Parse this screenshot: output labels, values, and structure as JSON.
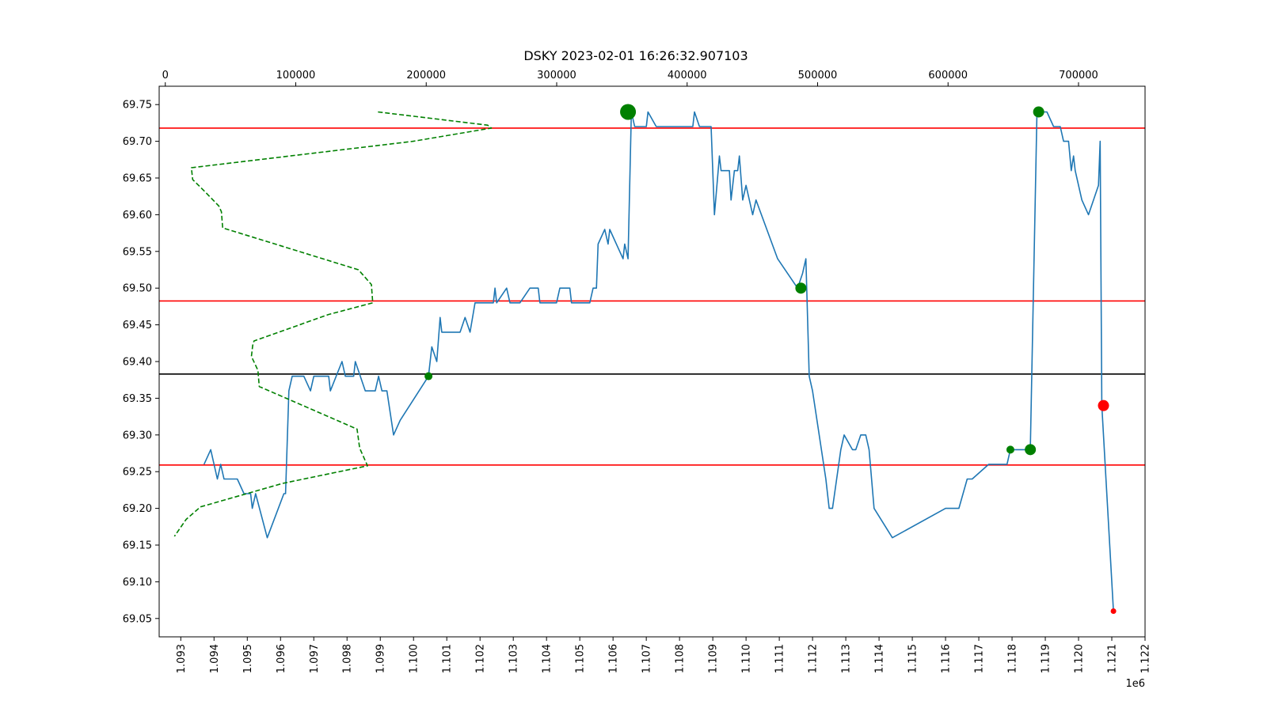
{
  "chart_data": {
    "type": "line",
    "title": "DSKY 2023-02-01 16:26:32.907103",
    "x_offset_label": "1e6",
    "x": {
      "range": [
        1092350,
        1122000
      ],
      "ticks": [
        1093000,
        1094000,
        1095000,
        1096000,
        1097000,
        1098000,
        1099000,
        1100000,
        1101000,
        1102000,
        1103000,
        1104000,
        1105000,
        1106000,
        1107000,
        1108000,
        1109000,
        1110000,
        1111000,
        1112000,
        1113000,
        1114000,
        1115000,
        1116000,
        1117000,
        1118000,
        1119000,
        1120000,
        1121000,
        1122000
      ],
      "tick_labels": [
        "1.093",
        "1.094",
        "1.095",
        "1.096",
        "1.097",
        "1.098",
        "1.099",
        "1.100",
        "1.101",
        "1.102",
        "1.103",
        "1.104",
        "1.105",
        "1.106",
        "1.107",
        "1.108",
        "1.109",
        "1.110",
        "1.111",
        "1.112",
        "1.113",
        "1.114",
        "1.115",
        "1.116",
        "1.117",
        "1.118",
        "1.119",
        "1.120",
        "1.121",
        "1.122"
      ]
    },
    "x_top": {
      "range": [
        -4700,
        751000
      ],
      "ticks": [
        0,
        100000,
        200000,
        300000,
        400000,
        500000,
        600000,
        700000
      ],
      "tick_labels": [
        "0",
        "100000",
        "200000",
        "300000",
        "400000",
        "500000",
        "600000",
        "700000"
      ]
    },
    "y": {
      "range": [
        69.025,
        69.775
      ],
      "ticks": [
        69.05,
        69.1,
        69.15,
        69.2,
        69.25,
        69.3,
        69.35,
        69.4,
        69.45,
        69.5,
        69.55,
        69.6,
        69.65,
        69.7,
        69.75
      ],
      "tick_labels": [
        "69.05",
        "69.10",
        "69.15",
        "69.20",
        "69.25",
        "69.30",
        "69.35",
        "69.40",
        "69.45",
        "69.50",
        "69.55",
        "69.60",
        "69.65",
        "69.70",
        "69.75"
      ]
    },
    "series": [
      {
        "kind": "line",
        "color": "#1f77b4",
        "points": [
          [
            1093700,
            69.26
          ],
          [
            1093900,
            69.28
          ],
          [
            1094100,
            69.24
          ],
          [
            1094200,
            69.26
          ],
          [
            1094300,
            69.24
          ],
          [
            1094700,
            69.24
          ],
          [
            1094900,
            69.22
          ],
          [
            1095100,
            69.22
          ],
          [
            1095150,
            69.2
          ],
          [
            1095250,
            69.22
          ],
          [
            1095600,
            69.16
          ],
          [
            1096100,
            69.22
          ],
          [
            1096150,
            69.22
          ],
          [
            1096250,
            69.36
          ],
          [
            1096350,
            69.38
          ],
          [
            1096700,
            69.38
          ],
          [
            1096900,
            69.36
          ],
          [
            1097000,
            69.38
          ],
          [
            1097450,
            69.38
          ],
          [
            1097500,
            69.36
          ],
          [
            1097850,
            69.4
          ],
          [
            1097950,
            69.38
          ],
          [
            1098200,
            69.38
          ],
          [
            1098250,
            69.4
          ],
          [
            1098550,
            69.36
          ],
          [
            1098850,
            69.36
          ],
          [
            1098950,
            69.38
          ],
          [
            1099050,
            69.36
          ],
          [
            1099200,
            69.36
          ],
          [
            1099400,
            69.3
          ],
          [
            1099600,
            69.32
          ],
          [
            1100450,
            69.38
          ],
          [
            1100550,
            69.42
          ],
          [
            1100700,
            69.4
          ],
          [
            1100800,
            69.46
          ],
          [
            1100850,
            69.44
          ],
          [
            1101400,
            69.44
          ],
          [
            1101550,
            69.46
          ],
          [
            1101700,
            69.44
          ],
          [
            1101850,
            69.48
          ],
          [
            1102250,
            69.48
          ],
          [
            1102400,
            69.48
          ],
          [
            1102450,
            69.5
          ],
          [
            1102500,
            69.48
          ],
          [
            1102800,
            69.5
          ],
          [
            1102900,
            69.48
          ],
          [
            1103200,
            69.48
          ],
          [
            1103500,
            69.5
          ],
          [
            1103750,
            69.5
          ],
          [
            1103800,
            69.48
          ],
          [
            1104300,
            69.48
          ],
          [
            1104400,
            69.5
          ],
          [
            1104700,
            69.5
          ],
          [
            1104750,
            69.48
          ],
          [
            1105300,
            69.48
          ],
          [
            1105400,
            69.5
          ],
          [
            1105500,
            69.5
          ],
          [
            1105550,
            69.56
          ],
          [
            1105750,
            69.58
          ],
          [
            1105850,
            69.56
          ],
          [
            1105900,
            69.58
          ],
          [
            1106200,
            69.55
          ],
          [
            1106300,
            69.54
          ],
          [
            1106350,
            69.56
          ],
          [
            1106450,
            69.54
          ],
          [
            1106550,
            69.74
          ],
          [
            1106650,
            69.72
          ],
          [
            1107000,
            69.72
          ],
          [
            1107050,
            69.74
          ],
          [
            1107300,
            69.72
          ],
          [
            1108400,
            69.72
          ],
          [
            1108450,
            69.74
          ],
          [
            1108600,
            69.72
          ],
          [
            1108950,
            69.72
          ],
          [
            1109050,
            69.6
          ],
          [
            1109200,
            69.68
          ],
          [
            1109250,
            69.66
          ],
          [
            1109500,
            69.66
          ],
          [
            1109550,
            69.62
          ],
          [
            1109650,
            69.66
          ],
          [
            1109750,
            69.66
          ],
          [
            1109800,
            69.68
          ],
          [
            1109900,
            69.62
          ],
          [
            1110000,
            69.64
          ],
          [
            1110200,
            69.6
          ],
          [
            1110300,
            69.62
          ],
          [
            1110950,
            69.54
          ],
          [
            1111550,
            69.5
          ],
          [
            1111700,
            69.52
          ],
          [
            1111800,
            69.54
          ],
          [
            1111900,
            69.38
          ],
          [
            1112000,
            69.36
          ],
          [
            1112400,
            69.24
          ],
          [
            1112500,
            69.2
          ],
          [
            1112600,
            69.2
          ],
          [
            1112850,
            69.28
          ],
          [
            1112950,
            69.3
          ],
          [
            1113200,
            69.28
          ],
          [
            1113300,
            69.28
          ],
          [
            1113450,
            69.3
          ],
          [
            1113600,
            69.3
          ],
          [
            1113700,
            69.28
          ],
          [
            1113850,
            69.2
          ],
          [
            1114400,
            69.16
          ],
          [
            1116000,
            69.2
          ],
          [
            1116400,
            69.2
          ],
          [
            1116650,
            69.24
          ],
          [
            1116800,
            69.24
          ],
          [
            1117300,
            69.26
          ],
          [
            1117850,
            69.26
          ],
          [
            1117950,
            69.28
          ],
          [
            1118550,
            69.28
          ],
          [
            1118750,
            69.74
          ],
          [
            1119050,
            69.74
          ],
          [
            1119250,
            69.72
          ],
          [
            1119450,
            69.72
          ],
          [
            1119550,
            69.7
          ],
          [
            1119700,
            69.7
          ],
          [
            1119780,
            69.66
          ],
          [
            1119850,
            69.68
          ],
          [
            1119900,
            69.66
          ],
          [
            1120100,
            69.62
          ],
          [
            1120300,
            69.6
          ],
          [
            1120600,
            69.64
          ],
          [
            1120650,
            69.7
          ],
          [
            1120700,
            69.34
          ],
          [
            1121050,
            69.06
          ]
        ]
      },
      {
        "kind": "volume-profile",
        "color": "#008000",
        "style": "dashed",
        "points": [
          [
            163000,
            69.74
          ],
          [
            247000,
            69.722
          ],
          [
            250000,
            69.718
          ],
          [
            190000,
            69.7
          ],
          [
            20000,
            69.664
          ],
          [
            21000,
            69.648
          ],
          [
            30000,
            69.632
          ],
          [
            41000,
            69.612
          ],
          [
            43000,
            69.604
          ],
          [
            44000,
            69.582
          ],
          [
            77000,
            69.564
          ],
          [
            148000,
            69.525
          ],
          [
            158000,
            69.505
          ],
          [
            159000,
            69.48
          ],
          [
            125000,
            69.464
          ],
          [
            68000,
            69.428
          ],
          [
            67000,
            69.422
          ],
          [
            66000,
            69.407
          ],
          [
            71000,
            69.388
          ],
          [
            72000,
            69.366
          ],
          [
            147000,
            69.308
          ],
          [
            149000,
            69.282
          ],
          [
            155000,
            69.258
          ],
          [
            90000,
            69.234
          ],
          [
            27000,
            69.202
          ],
          [
            16000,
            69.185
          ],
          [
            7000,
            69.162
          ]
        ]
      }
    ],
    "hlines": [
      {
        "y": 69.718,
        "color": "#ff0000"
      },
      {
        "y": 69.4825,
        "color": "#ff0000"
      },
      {
        "y": 69.383,
        "color": "#000000"
      },
      {
        "y": 69.259,
        "color": "#ff0000"
      }
    ],
    "markers": [
      {
        "x": 1100450,
        "y": 69.38,
        "color": "#008000",
        "size": "small"
      },
      {
        "x": 1106450,
        "y": 69.74,
        "color": "#008000",
        "size": "large"
      },
      {
        "x": 1111650,
        "y": 69.5,
        "color": "#008000",
        "size": "medium"
      },
      {
        "x": 1117950,
        "y": 69.28,
        "color": "#008000",
        "size": "small"
      },
      {
        "x": 1118550,
        "y": 69.28,
        "color": "#008000",
        "size": "medium"
      },
      {
        "x": 1118800,
        "y": 69.74,
        "color": "#008000",
        "size": "medium"
      },
      {
        "x": 1120750,
        "y": 69.34,
        "color": "#ff0000",
        "size": "medium"
      },
      {
        "x": 1121050,
        "y": 69.06,
        "color": "#ff0000",
        "size": "tiny"
      }
    ],
    "grid": false,
    "legend": "none"
  }
}
